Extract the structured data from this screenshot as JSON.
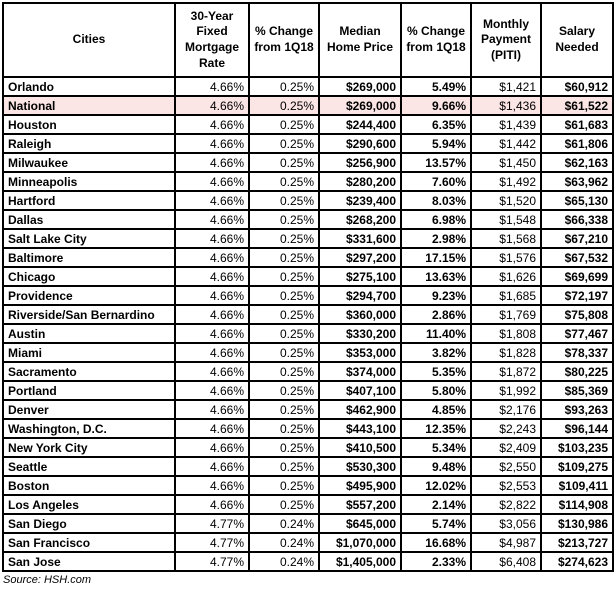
{
  "chart_data": {
    "type": "table",
    "columns": [
      "Cities",
      "30-Year Fixed Mortgage Rate",
      "% Change from 1Q18",
      "Median Home Price",
      "% Change from 1Q18",
      "Monthly Payment (PITI)",
      "Salary Needed"
    ],
    "highlight_city": "National",
    "rows": [
      [
        "Orlando",
        "4.66%",
        "0.25%",
        "$269,000",
        "5.49%",
        "$1,421",
        "$60,912"
      ],
      [
        "National",
        "4.66%",
        "0.25%",
        "$269,000",
        "9.66%",
        "$1,436",
        "$61,522"
      ],
      [
        "Houston",
        "4.66%",
        "0.25%",
        "$244,400",
        "6.35%",
        "$1,439",
        "$61,683"
      ],
      [
        "Raleigh",
        "4.66%",
        "0.25%",
        "$290,600",
        "5.94%",
        "$1,442",
        "$61,806"
      ],
      [
        "Milwaukee",
        "4.66%",
        "0.25%",
        "$256,900",
        "13.57%",
        "$1,450",
        "$62,163"
      ],
      [
        "Minneapolis",
        "4.66%",
        "0.25%",
        "$280,200",
        "7.60%",
        "$1,492",
        "$63,962"
      ],
      [
        "Hartford",
        "4.66%",
        "0.25%",
        "$239,400",
        "8.03%",
        "$1,520",
        "$65,130"
      ],
      [
        "Dallas",
        "4.66%",
        "0.25%",
        "$268,200",
        "6.98%",
        "$1,548",
        "$66,338"
      ],
      [
        "Salt Lake City",
        "4.66%",
        "0.25%",
        "$331,600",
        "2.98%",
        "$1,568",
        "$67,210"
      ],
      [
        "Baltimore",
        "4.66%",
        "0.25%",
        "$297,200",
        "17.15%",
        "$1,576",
        "$67,532"
      ],
      [
        "Chicago",
        "4.66%",
        "0.25%",
        "$275,100",
        "13.63%",
        "$1,626",
        "$69,699"
      ],
      [
        "Providence",
        "4.66%",
        "0.25%",
        "$294,700",
        "9.23%",
        "$1,685",
        "$72,197"
      ],
      [
        "Riverside/San Bernardino",
        "4.66%",
        "0.25%",
        "$360,000",
        "2.86%",
        "$1,769",
        "$75,808"
      ],
      [
        "Austin",
        "4.66%",
        "0.25%",
        "$330,200",
        "11.40%",
        "$1,808",
        "$77,467"
      ],
      [
        "Miami",
        "4.66%",
        "0.25%",
        "$353,000",
        "3.82%",
        "$1,828",
        "$78,337"
      ],
      [
        "Sacramento",
        "4.66%",
        "0.25%",
        "$374,000",
        "5.35%",
        "$1,872",
        "$80,225"
      ],
      [
        "Portland",
        "4.66%",
        "0.25%",
        "$407,100",
        "5.80%",
        "$1,992",
        "$85,369"
      ],
      [
        "Denver",
        "4.66%",
        "0.25%",
        "$462,900",
        "4.85%",
        "$2,176",
        "$93,263"
      ],
      [
        "Washington, D.C.",
        "4.66%",
        "0.25%",
        "$443,100",
        "12.35%",
        "$2,243",
        "$96,144"
      ],
      [
        "New York City",
        "4.66%",
        "0.25%",
        "$410,500",
        "5.34%",
        "$2,409",
        "$103,235"
      ],
      [
        "Seattle",
        "4.66%",
        "0.25%",
        "$530,300",
        "9.48%",
        "$2,550",
        "$109,275"
      ],
      [
        "Boston",
        "4.66%",
        "0.25%",
        "$495,900",
        "12.02%",
        "$2,553",
        "$109,411"
      ],
      [
        "Los Angeles",
        "4.66%",
        "0.25%",
        "$557,200",
        "2.14%",
        "$2,822",
        "$114,908"
      ],
      [
        "San Diego",
        "4.77%",
        "0.24%",
        "$645,000",
        "5.74%",
        "$3,056",
        "$130,986"
      ],
      [
        "San Francisco",
        "4.77%",
        "0.24%",
        "$1,070,000",
        "16.68%",
        "$4,987",
        "$213,727"
      ],
      [
        "San Jose",
        "4.77%",
        "0.24%",
        "$1,405,000",
        "2.33%",
        "$6,408",
        "$274,623"
      ]
    ]
  },
  "source": "Source: HSH.com",
  "colors": {
    "highlight_row": "#fbe5e5",
    "border": "#000000"
  }
}
